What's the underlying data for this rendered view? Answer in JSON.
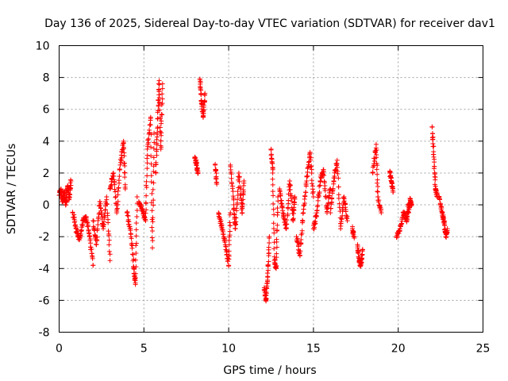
{
  "chart_data": {
    "type": "scatter",
    "title": "Day 136 of 2025, Sidereal Day-to-day VTEC variation (SDTVAR) for receiver dav1",
    "xlabel": "GPS time / hours",
    "ylabel": "SDTVAR / TECUs",
    "xlim": [
      0,
      25
    ],
    "ylim": [
      -8,
      10
    ],
    "xticks": [
      0,
      5,
      10,
      15,
      20,
      25
    ],
    "xtick_labels": [
      "0",
      "5",
      "10",
      "15",
      "20",
      "25"
    ],
    "yticks": [
      -8,
      -6,
      -4,
      -2,
      0,
      2,
      4,
      6,
      8,
      10
    ],
    "ytick_labels": [
      "-8",
      "-6",
      "-4",
      "-2",
      "0",
      "2",
      "4",
      "6",
      "8",
      "10"
    ],
    "grid": true,
    "marker": "plus",
    "series_color": "#ff0000",
    "segments": [
      {
        "x0": 0.0,
        "x1": 0.7,
        "pts": [
          [
            0.0,
            0.6
          ],
          [
            0.1,
            1.0
          ],
          [
            0.2,
            0.2
          ],
          [
            0.3,
            0.8
          ],
          [
            0.4,
            0.0
          ],
          [
            0.5,
            1.2
          ],
          [
            0.6,
            0.4
          ],
          [
            0.7,
            1.5
          ]
        ]
      },
      {
        "x0": 0.8,
        "x1": 2.0,
        "pts": [
          [
            0.8,
            -0.5
          ],
          [
            1.0,
            -1.5
          ],
          [
            1.2,
            -2.2
          ],
          [
            1.4,
            -1.0
          ],
          [
            1.6,
            -0.8
          ],
          [
            1.8,
            -2.0
          ],
          [
            2.0,
            -3.8
          ]
        ]
      },
      {
        "x0": 2.0,
        "x1": 3.0,
        "pts": [
          [
            2.0,
            -1.0
          ],
          [
            2.2,
            -2.5
          ],
          [
            2.4,
            0.2
          ],
          [
            2.6,
            -1.5
          ],
          [
            2.8,
            0.5
          ],
          [
            3.0,
            -3.5
          ]
        ]
      },
      {
        "x0": 3.0,
        "x1": 3.9,
        "pts": [
          [
            3.0,
            1.0
          ],
          [
            3.2,
            2.0
          ],
          [
            3.4,
            -0.5
          ],
          [
            3.6,
            2.5
          ],
          [
            3.8,
            4.0
          ],
          [
            3.9,
            1.0
          ]
        ]
      },
      {
        "x0": 4.0,
        "x1": 4.6,
        "pts": [
          [
            4.0,
            -0.5
          ],
          [
            4.2,
            -1.5
          ],
          [
            4.4,
            -3.9
          ],
          [
            4.5,
            -5.0
          ],
          [
            4.6,
            0.5
          ]
        ]
      },
      {
        "x0": 4.6,
        "x1": 5.6,
        "pts": [
          [
            4.7,
            0.2
          ],
          [
            4.9,
            -0.3
          ],
          [
            5.1,
            -1.0
          ],
          [
            5.2,
            3.5
          ],
          [
            5.4,
            5.5
          ],
          [
            5.5,
            -2.7
          ],
          [
            5.6,
            4.5
          ]
        ]
      },
      {
        "x0": 5.6,
        "x1": 6.1,
        "pts": [
          [
            5.7,
            2.0
          ],
          [
            5.8,
            4.8
          ],
          [
            5.9,
            7.8
          ],
          [
            6.0,
            3.5
          ],
          [
            6.1,
            7.6
          ]
        ]
      },
      {
        "x0": 8.0,
        "x1": 8.2,
        "pts": [
          [
            8.0,
            3.0
          ],
          [
            8.1,
            2.5
          ],
          [
            8.2,
            2.0
          ]
        ]
      },
      {
        "x0": 8.3,
        "x1": 8.6,
        "pts": [
          [
            8.3,
            7.9
          ],
          [
            8.4,
            6.5
          ],
          [
            8.5,
            5.5
          ],
          [
            8.6,
            7.0
          ]
        ]
      },
      {
        "x0": 9.2,
        "x1": 9.3,
        "pts": [
          [
            9.2,
            2.5
          ],
          [
            9.3,
            1.3
          ]
        ]
      },
      {
        "x0": 9.4,
        "x1": 10.1,
        "pts": [
          [
            9.4,
            -0.5
          ],
          [
            9.6,
            -1.5
          ],
          [
            9.8,
            -2.5
          ],
          [
            10.0,
            -3.8
          ],
          [
            10.1,
            -0.5
          ]
        ]
      },
      {
        "x0": 10.1,
        "x1": 10.9,
        "pts": [
          [
            10.1,
            2.5
          ],
          [
            10.3,
            0.0
          ],
          [
            10.4,
            -1.5
          ],
          [
            10.6,
            2.0
          ],
          [
            10.8,
            -0.5
          ],
          [
            10.9,
            1.5
          ]
        ]
      },
      {
        "x0": 12.1,
        "x1": 12.4,
        "pts": [
          [
            12.1,
            -5.2
          ],
          [
            12.2,
            -6.0
          ],
          [
            12.3,
            -4.5
          ],
          [
            12.4,
            -2.0
          ]
        ]
      },
      {
        "x0": 12.4,
        "x1": 12.9,
        "pts": [
          [
            12.5,
            3.5
          ],
          [
            12.6,
            2.0
          ],
          [
            12.7,
            -3.5
          ],
          [
            12.8,
            -4.0
          ],
          [
            12.9,
            0.5
          ]
        ]
      },
      {
        "x0": 13.0,
        "x1": 13.9,
        "pts": [
          [
            13.0,
            1.0
          ],
          [
            13.2,
            -0.5
          ],
          [
            13.4,
            -1.5
          ],
          [
            13.6,
            1.5
          ],
          [
            13.8,
            -1.0
          ],
          [
            13.9,
            0.5
          ]
        ]
      },
      {
        "x0": 14.0,
        "x1": 15.0,
        "pts": [
          [
            14.0,
            -2.0
          ],
          [
            14.2,
            -3.2
          ],
          [
            14.4,
            -0.5
          ],
          [
            14.6,
            1.5
          ],
          [
            14.8,
            3.3
          ],
          [
            15.0,
            0.5
          ]
        ]
      },
      {
        "x0": 15.0,
        "x1": 16.0,
        "pts": [
          [
            15.0,
            -1.5
          ],
          [
            15.2,
            -0.5
          ],
          [
            15.4,
            1.5
          ],
          [
            15.6,
            2.2
          ],
          [
            15.8,
            -0.5
          ],
          [
            16.0,
            1.0
          ]
        ]
      },
      {
        "x0": 16.0,
        "x1": 17.0,
        "pts": [
          [
            16.0,
            -0.5
          ],
          [
            16.2,
            1.5
          ],
          [
            16.4,
            2.8
          ],
          [
            16.6,
            -1.5
          ],
          [
            16.8,
            0.5
          ],
          [
            17.0,
            -1.0
          ]
        ]
      },
      {
        "x0": 17.3,
        "x1": 17.5,
        "pts": [
          [
            17.3,
            -1.5
          ],
          [
            17.4,
            -2.0
          ]
        ]
      },
      {
        "x0": 17.6,
        "x1": 17.9,
        "pts": [
          [
            17.6,
            -2.5
          ],
          [
            17.7,
            -3.5
          ],
          [
            17.8,
            -3.8
          ],
          [
            17.9,
            -2.8
          ]
        ]
      },
      {
        "x0": 18.5,
        "x1": 19.0,
        "pts": [
          [
            18.5,
            2.0
          ],
          [
            18.7,
            3.8
          ],
          [
            18.8,
            0.5
          ],
          [
            19.0,
            -0.5
          ]
        ]
      },
      {
        "x0": 19.5,
        "x1": 19.7,
        "pts": [
          [
            19.5,
            2.0
          ],
          [
            19.6,
            1.5
          ],
          [
            19.7,
            0.8
          ]
        ]
      },
      {
        "x0": 19.9,
        "x1": 20.6,
        "pts": [
          [
            19.9,
            -2.0
          ],
          [
            20.1,
            -1.5
          ],
          [
            20.3,
            -0.5
          ],
          [
            20.5,
            -1.0
          ],
          [
            20.6,
            0.0
          ]
        ]
      },
      {
        "x0": 20.6,
        "x1": 20.8,
        "pts": [
          [
            20.6,
            -0.5
          ],
          [
            20.7,
            0.3
          ],
          [
            20.8,
            0.0
          ]
        ]
      },
      {
        "x0": 22.0,
        "x1": 22.3,
        "pts": [
          [
            22.0,
            4.9
          ],
          [
            22.1,
            3.0
          ],
          [
            22.2,
            1.0
          ],
          [
            22.3,
            0.5
          ]
        ]
      },
      {
        "x0": 22.4,
        "x1": 22.9,
        "pts": [
          [
            22.4,
            0.5
          ],
          [
            22.6,
            -0.5
          ],
          [
            22.7,
            -1.0
          ],
          [
            22.8,
            -2.0
          ],
          [
            22.9,
            -1.5
          ]
        ]
      }
    ]
  }
}
